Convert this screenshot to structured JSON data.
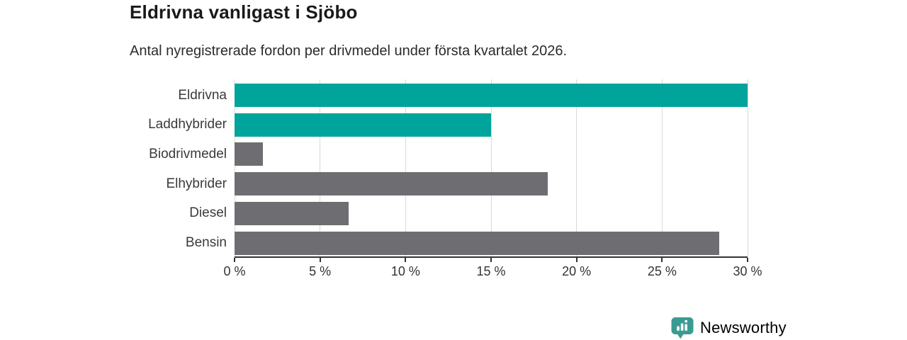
{
  "header": {
    "title": "Eldrivna vanligast i Sjöbo",
    "subtitle": "Antal nyregistrerade fordon per drivmedel under första kvartalet 2026."
  },
  "colors": {
    "accent_teal": "#00a49b",
    "muted_gray": "#6e6e72",
    "gridline": "#d9d9da",
    "axis": "#333333",
    "title_text": "#191919",
    "logo_teal": "#3b9b93"
  },
  "chart_data": {
    "type": "bar",
    "orientation": "horizontal",
    "title": "Eldrivna vanligast i Sjöbo",
    "subtitle": "Antal nyregistrerade fordon per drivmedel under första kvartalet 2026.",
    "categories": [
      "Eldrivna",
      "Laddhybrider",
      "Biodrivmedel",
      "Elhybrider",
      "Diesel",
      "Bensin"
    ],
    "values": [
      30,
      15,
      1.67,
      18.33,
      6.67,
      28.33
    ],
    "bar_colors": [
      "#00a49b",
      "#00a49b",
      "#6e6e72",
      "#6e6e72",
      "#6e6e72",
      "#6e6e72"
    ],
    "xlim": [
      0,
      30
    ],
    "xticks": [
      0,
      5,
      10,
      15,
      20,
      25,
      30
    ],
    "xtick_labels": [
      "0 %",
      "5 %",
      "10 %",
      "15 %",
      "20 %",
      "25 %",
      "30 %"
    ],
    "xlabel": "",
    "ylabel": "",
    "grid": true,
    "legend": false
  },
  "branding": {
    "logo_text": "Newsworthy",
    "logo_icon": "newsworthy-chart-pin-icon"
  }
}
